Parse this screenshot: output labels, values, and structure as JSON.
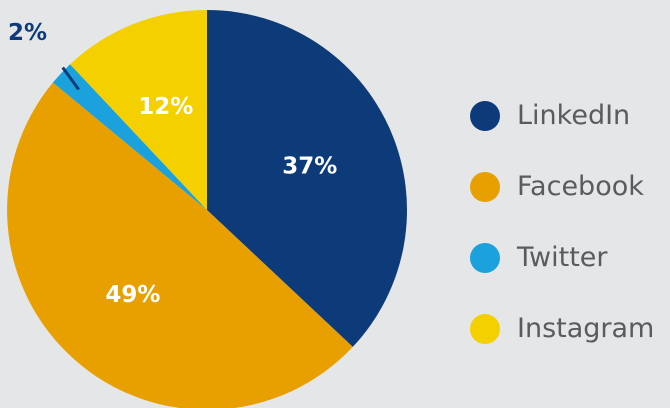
{
  "chart_data": {
    "type": "pie",
    "slices": [
      {
        "name": "LinkedIn",
        "value": 37,
        "label": "37%",
        "color": "#0d3b7a"
      },
      {
        "name": "Facebook",
        "value": 49,
        "label": "49%",
        "color": "#e89f00"
      },
      {
        "name": "Twitter",
        "value": 2,
        "label": "2%",
        "color": "#1ba1dc"
      },
      {
        "name": "Instagram",
        "value": 12,
        "label": "12%",
        "color": "#f5d000"
      }
    ],
    "start_angle": "top",
    "direction": "clockwise",
    "legend_position": "right"
  }
}
